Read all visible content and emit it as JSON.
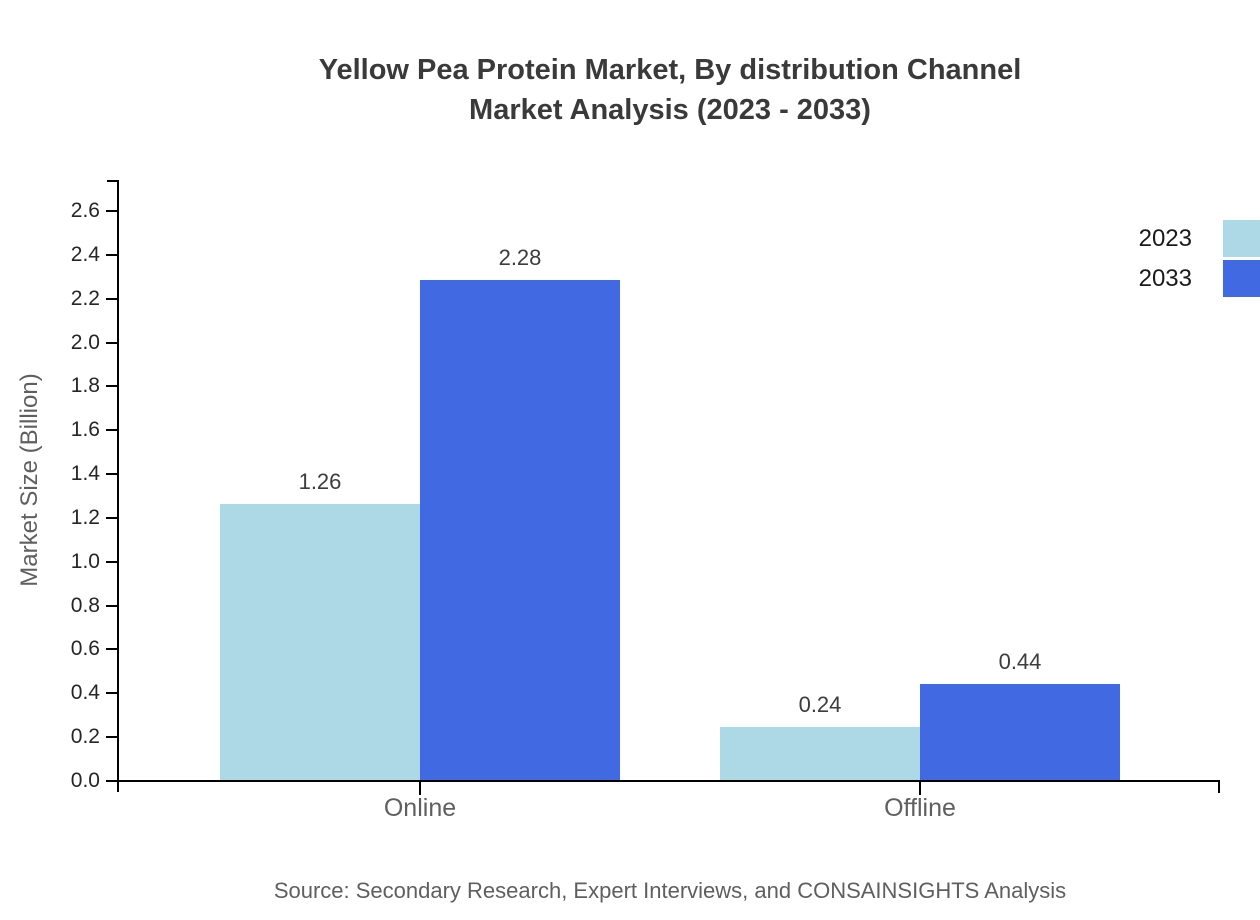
{
  "title": {
    "line1": "Yellow Pea Protein Market, By distribution Channel",
    "line2": "Market Analysis (2023 - 2033)"
  },
  "source": "Source: Secondary Research, Expert Interviews, and CONSAINSIGHTS Analysis",
  "legend": {
    "items": [
      {
        "label": "2023",
        "color": "#add8e6"
      },
      {
        "label": "2033",
        "color": "#4169e1"
      }
    ]
  },
  "chart_data": {
    "type": "bar",
    "title": "Yellow Pea Protein Market, By distribution Channel Market Analysis (2023 - 2033)",
    "categories": [
      "Online",
      "Offline"
    ],
    "series": [
      {
        "name": "2023",
        "color": "#add8e6",
        "values": [
          1.26,
          0.24
        ]
      },
      {
        "name": "2033",
        "color": "#4169e1",
        "values": [
          2.28,
          0.44
        ]
      }
    ],
    "value_labels": [
      [
        "1.26",
        "0.24"
      ],
      [
        "2.28",
        "0.44"
      ]
    ],
    "xlabel": "",
    "ylabel": "Market Size (Billion)",
    "ylim": [
      0,
      2.74
    ],
    "yticks": [
      "0.0",
      "0.2",
      "0.4",
      "0.6",
      "0.8",
      "1.0",
      "1.2",
      "1.4",
      "1.6",
      "1.8",
      "2.0",
      "2.2",
      "2.4",
      "2.6"
    ],
    "ytick_step": 0.2,
    "grid": false,
    "legend_position": "upper-right-outside",
    "axis_color": "#000000"
  }
}
